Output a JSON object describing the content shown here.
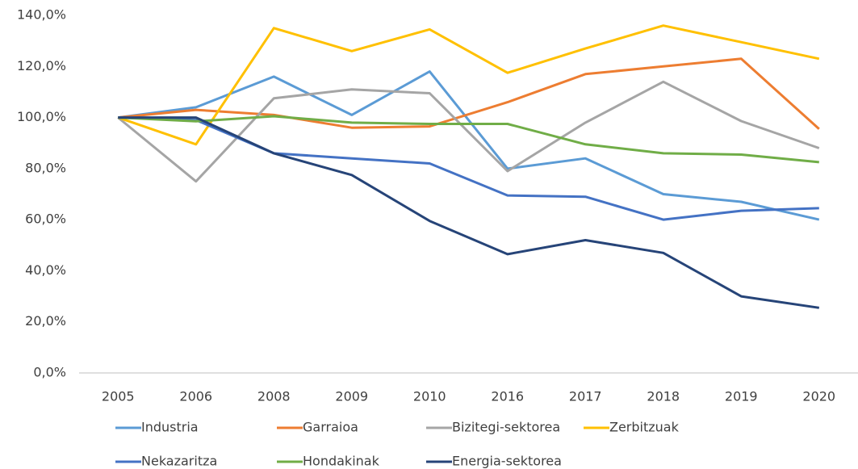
{
  "chart_data": {
    "type": "line",
    "categories": [
      "2005",
      "2006",
      "2008",
      "2009",
      "2010",
      "2016",
      "2017",
      "2018",
      "2019",
      "2020"
    ],
    "series": [
      {
        "name": "Industria",
        "color": "#5b9bd5",
        "values": [
          100,
          104,
          116,
          101,
          118,
          80,
          84,
          70,
          67,
          60
        ]
      },
      {
        "name": "Garraioa",
        "color": "#ed7d31",
        "values": [
          100,
          103,
          101,
          96,
          96.5,
          106,
          117,
          120,
          123,
          95.5
        ]
      },
      {
        "name": "Bizitegi-sektorea",
        "color": "#a5a5a5",
        "values": [
          100,
          75,
          107.5,
          111,
          109.5,
          79,
          98,
          114,
          98.6,
          88
        ]
      },
      {
        "name": "Zerbitzuak",
        "color": "#ffc000",
        "values": [
          100,
          89.5,
          135,
          126,
          134.5,
          117.5,
          127,
          136,
          129.5,
          123
        ]
      },
      {
        "name": "Nekazaritza",
        "color": "#4472c4",
        "values": [
          100,
          99,
          86,
          84,
          82,
          69.5,
          69,
          60,
          63.5,
          64.5
        ]
      },
      {
        "name": "Hondakinak",
        "color": "#70ad47",
        "values": [
          100,
          98.5,
          100.5,
          98,
          97.5,
          97.5,
          89.5,
          86,
          85.5,
          82.5
        ]
      },
      {
        "name": "Energia-sektorea",
        "color": "#264478",
        "values": [
          100,
          100,
          86,
          77.5,
          59.5,
          46.5,
          52,
          47,
          30,
          25.5
        ]
      }
    ],
    "ylim": [
      0,
      140
    ],
    "yticks": [
      {
        "value": 0,
        "label": "0,0%"
      },
      {
        "value": 20,
        "label": "20,0%"
      },
      {
        "value": 40,
        "label": "40,0%"
      },
      {
        "value": 60,
        "label": "60,0%"
      },
      {
        "value": 80,
        "label": "80,0%"
      },
      {
        "value": 100,
        "label": "100,0%"
      },
      {
        "value": 120,
        "label": "120,0%"
      },
      {
        "value": 140,
        "label": "140,0%"
      }
    ],
    "grid": false
  }
}
